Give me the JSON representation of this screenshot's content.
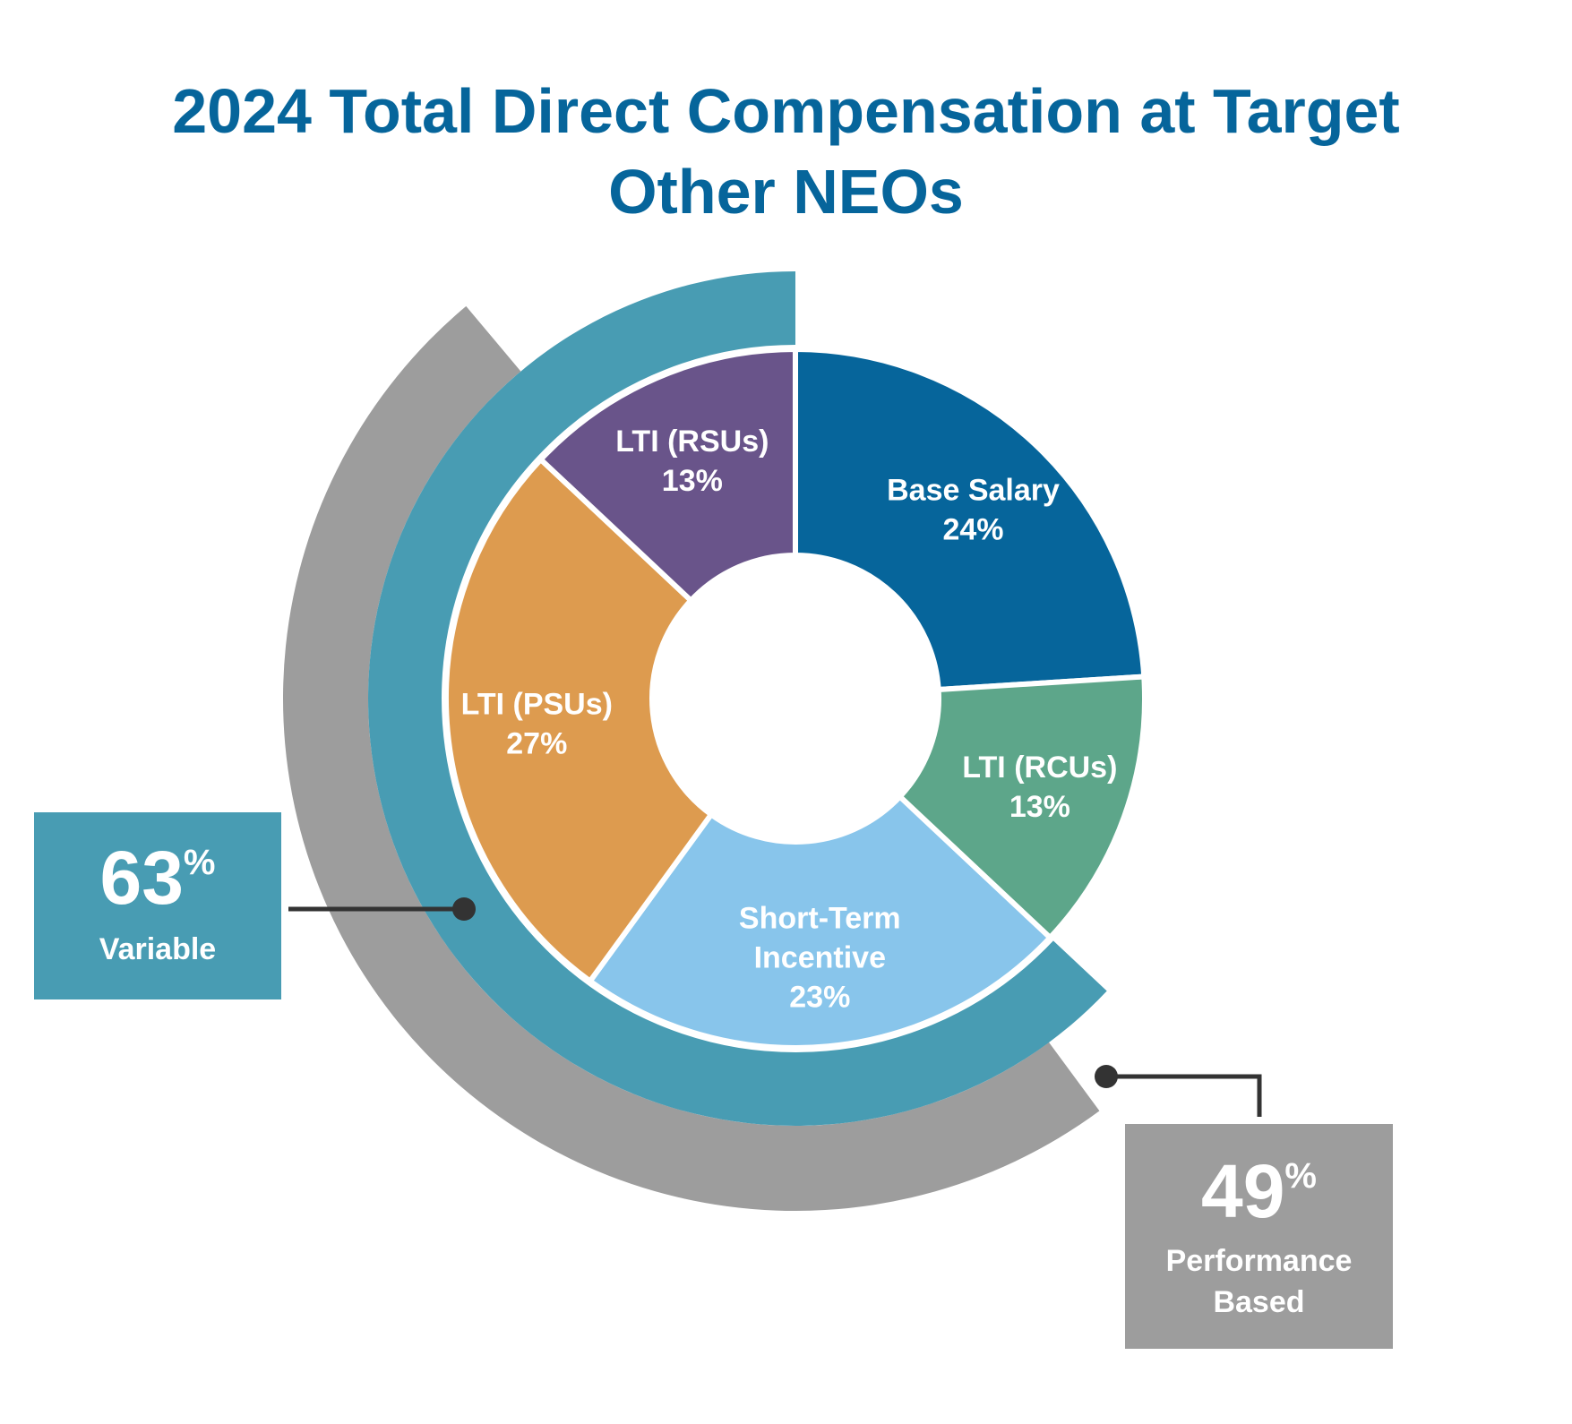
{
  "title": {
    "line1": "2024 Total Direct Compensation at Target",
    "line2": "Other NEOs"
  },
  "chart_data": {
    "type": "pie",
    "variant": "donut",
    "slices": [
      {
        "label": "Base Salary",
        "value": 24,
        "display": "24%",
        "color": "#06659b"
      },
      {
        "label": "LTI (RCUs)",
        "value": 13,
        "display": "13%",
        "color": "#5da68a"
      },
      {
        "label": "Short-Term Incentive",
        "value": 23,
        "display": "23%",
        "color": "#88c5eb"
      },
      {
        "label": "LTI (PSUs)",
        "value": 27,
        "display": "27%",
        "color": "#dd9b4f"
      },
      {
        "label": "LTI (RSUs)",
        "value": 13,
        "display": "13%",
        "color": "#69548a"
      }
    ],
    "rings": [
      {
        "name": "Variable",
        "value": 63,
        "color": "#489cb3"
      },
      {
        "name": "Performance Based",
        "value": 49,
        "color": "#9d9d9d"
      }
    ]
  },
  "callouts": {
    "variable": {
      "value": "63",
      "unit": "%",
      "label": "Variable",
      "color": "#489cb3"
    },
    "performance": {
      "value": "49",
      "unit": "%",
      "label_line1": "Performance",
      "label_line2": "Based",
      "color": "#9d9d9d"
    }
  }
}
